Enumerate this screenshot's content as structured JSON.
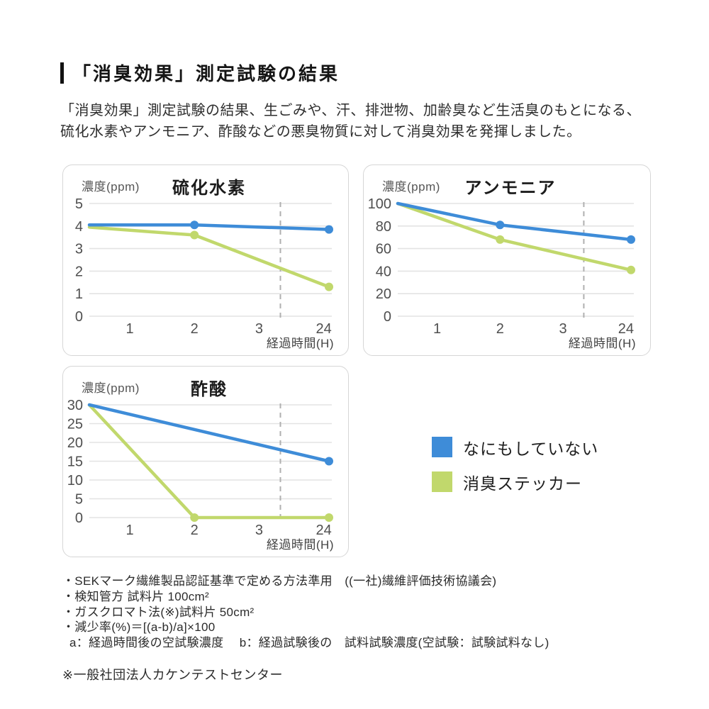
{
  "page": {
    "title": "「消臭効果」測定試験の結果",
    "intro_line1": "「消臭効果」測定試験の結果、生ごみや、汗、排泄物、加齢臭など生活臭のもとになる、",
    "intro_line2": "硫化水素やアンモニア、酢酸などの悪臭物質に対して消臭効果を発揮しました。"
  },
  "colors": {
    "blue": "#3E8CD8",
    "green": "#C1D86C",
    "grid": "#e3e3e3",
    "dashed": "#b0b0b0",
    "tick_text": "#4f4f4f"
  },
  "legend": [
    {
      "label": "なにもしていない",
      "color": "blue"
    },
    {
      "label": "消臭ステッカー",
      "color": "green"
    }
  ],
  "footnotes": [
    "・SEKマーク繊維製品認証基準で定める方法準用　((一社)繊維評価技術協議会)",
    "・検知管方 試料片 100cm²",
    "・ガスクロマト法(※)試料片 50cm²",
    "・減少率(%)＝[(a-b)/a]×100",
    "  a：経過時間後の空試験濃度　 b：経過試験後の　試料試験濃度(空試験：試験試料なし)"
  ],
  "source_note": "※一般社団法人カケンテストセンター",
  "chart_data": [
    {
      "type": "line",
      "title": "硫化水素",
      "ylabel": "濃度(ppm)",
      "xlabel": "経過時間(H)",
      "categories": [
        "1",
        "2",
        "3",
        "24"
      ],
      "ylim": [
        0,
        5
      ],
      "y_ticks": [
        5,
        4,
        3,
        2,
        1,
        0
      ],
      "dashed_index": 2.33,
      "series": [
        {
          "name": "なにもしていない",
          "color": "blue",
          "points": [
            {
              "t": 0,
              "v": 4.05
            },
            {
              "t": 2,
              "v": 4.05
            },
            {
              "t": 24,
              "v": 3.85
            }
          ],
          "markers": [
            2,
            24
          ]
        },
        {
          "name": "消臭ステッカー",
          "color": "green",
          "points": [
            {
              "t": 0,
              "v": 3.95
            },
            {
              "t": 2,
              "v": 3.6
            },
            {
              "t": 24,
              "v": 1.3
            }
          ],
          "markers": [
            2,
            24
          ]
        }
      ]
    },
    {
      "type": "line",
      "title": "アンモニア",
      "ylabel": "濃度(ppm)",
      "xlabel": "経過時間(H)",
      "categories": [
        "1",
        "2",
        "3",
        "24"
      ],
      "ylim": [
        0,
        100
      ],
      "y_ticks": [
        100,
        80,
        60,
        40,
        20,
        0
      ],
      "dashed_index": 2.33,
      "series": [
        {
          "name": "なにもしていない",
          "color": "blue",
          "points": [
            {
              "t": 0,
              "v": 100
            },
            {
              "t": 2,
              "v": 81
            },
            {
              "t": 24,
              "v": 68
            }
          ],
          "markers": [
            2,
            24
          ]
        },
        {
          "name": "消臭ステッカー",
          "color": "green",
          "points": [
            {
              "t": 0,
              "v": 100
            },
            {
              "t": 2,
              "v": 68
            },
            {
              "t": 24,
              "v": 41
            }
          ],
          "markers": [
            2,
            24
          ]
        }
      ]
    },
    {
      "type": "line",
      "title": "酢酸",
      "ylabel": "濃度(ppm)",
      "xlabel": "経過時間(H)",
      "categories": [
        "1",
        "2",
        "3",
        "24"
      ],
      "ylim": [
        0,
        30
      ],
      "y_ticks": [
        30,
        25,
        20,
        15,
        10,
        5,
        0
      ],
      "dashed_index": 2.33,
      "series": [
        {
          "name": "なにもしていない",
          "color": "blue",
          "points": [
            {
              "t": 0,
              "v": 30
            },
            {
              "t": 24,
              "v": 15
            }
          ],
          "markers": [
            24
          ]
        },
        {
          "name": "消臭ステッカー",
          "color": "green",
          "points": [
            {
              "t": 0,
              "v": 30
            },
            {
              "t": 2,
              "v": 0
            },
            {
              "t": 24,
              "v": 0
            }
          ],
          "markers": [
            2,
            24
          ]
        }
      ]
    }
  ]
}
